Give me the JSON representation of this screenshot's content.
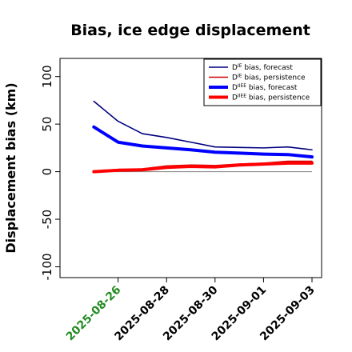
{
  "chart_data": {
    "type": "line",
    "title": "Bias, ice edge displacement",
    "xlabel": "",
    "ylabel": "Displacement bias (km)",
    "x": [
      "2025-08-25",
      "2025-08-26",
      "2025-08-27",
      "2025-08-28",
      "2025-08-29",
      "2025-08-30",
      "2025-08-31",
      "2025-09-01",
      "2025-09-02",
      "2025-09-03"
    ],
    "xticks": [
      "2025-08-26",
      "2025-08-28",
      "2025-08-30",
      "2025-09-01",
      "2025-09-03"
    ],
    "xtick_colors": [
      "#228b22",
      "#000000",
      "#000000",
      "#000000",
      "#000000"
    ],
    "xlim": [
      "2025-08-24",
      "2025-09-03"
    ],
    "ylim": [
      -108,
      109
    ],
    "yticks": [
      -100,
      -50,
      0,
      50,
      100
    ],
    "reference_line": 0,
    "reference_color": "#808080",
    "legend_position": "top-right",
    "series": [
      {
        "legend_base": "D",
        "legend_sup": "IE",
        "legend_rest": " bias, forecast",
        "color": "#000080",
        "width": "thin",
        "values": [
          74,
          53,
          40,
          36,
          31,
          26,
          25.5,
          25,
          26,
          23
        ]
      },
      {
        "legend_base": "D",
        "legend_sup": "IE",
        "legend_rest": " bias, persistence",
        "color": "#cc0000",
        "width": "thin",
        "values": [
          0,
          2,
          3,
          6,
          7,
          6.5,
          8,
          9,
          11,
          11
        ]
      },
      {
        "legend_base": "D",
        "legend_sup": "IIEE",
        "legend_rest": " bias, forecast",
        "color": "#0000ff",
        "width": "thick",
        "values": [
          47,
          31,
          27,
          25,
          23,
          20.5,
          19.5,
          18.5,
          18,
          15.5
        ]
      },
      {
        "legend_base": "D",
        "legend_sup": "IIEE",
        "legend_rest": " bias, persistence",
        "color": "#ff0000",
        "width": "thick",
        "values": [
          0,
          1.5,
          2,
          4.5,
          5.5,
          5,
          7,
          8,
          9,
          9
        ]
      }
    ]
  }
}
